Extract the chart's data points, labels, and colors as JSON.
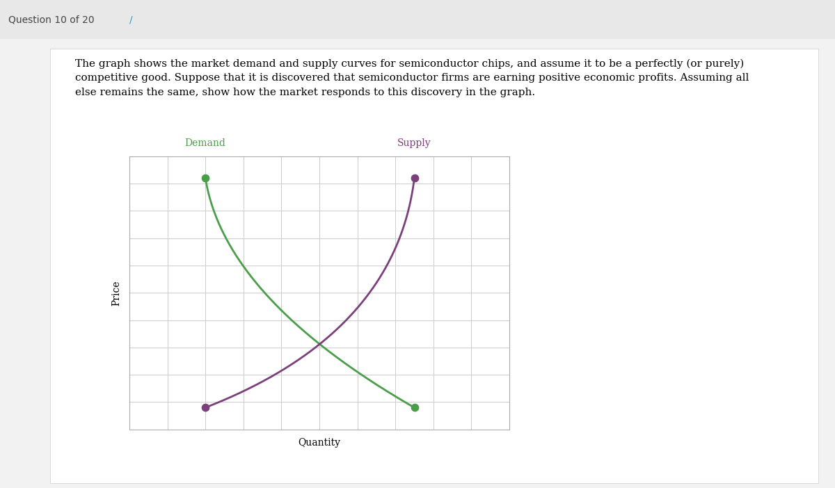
{
  "demand_color": "#4a9e4a",
  "supply_color": "#7b3f7b",
  "demand_label": "Demand",
  "supply_label": "Supply",
  "xlabel": "Quantity",
  "ylabel": "Price",
  "background_color": "#ffffff",
  "panel_background": "#ffffff",
  "grid_color": "#cccccc",
  "title_text": "The graph shows the market demand and supply curves for semiconductor chips, and assume it to be a perfectly (or purely)\ncompetitive good. Suppose that it is discovered that semiconductor firms are earning positive economic profits. Assuming all\nelse remains the same, show how the market responds to this discovery in the graph.",
  "label_fontsize": 10,
  "axis_label_fontsize": 10,
  "title_fontsize": 11,
  "dot_size": 55,
  "line_width": 2.0,
  "header_text": "Question 10 of 20",
  "header_arrow": "7"
}
